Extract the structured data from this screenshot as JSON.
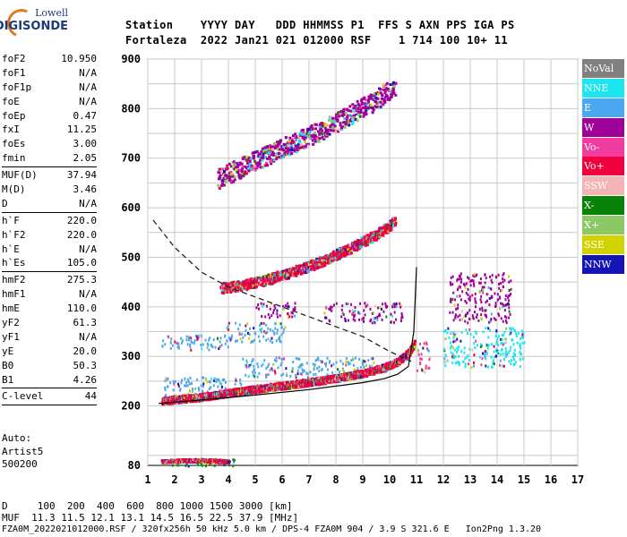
{
  "logo": {
    "line1": "Lowell",
    "line2": "DIGISONDE"
  },
  "header": {
    "line1": "Station    YYYY DAY   DDD HHMMSS P1  FFS S AXN PPS IGA PS",
    "line2": "Fortaleza  2022 Jan21 021 012000 RSF    1 714 100 10+ 11"
  },
  "params": {
    "group1": [
      {
        "label": "foF2",
        "value": "10.950"
      },
      {
        "label": "foF1",
        "value": "N/A"
      },
      {
        "label": "foF1p",
        "value": "N/A"
      },
      {
        "label": "foE",
        "value": "N/A"
      },
      {
        "label": "foEp",
        "value": "0.47"
      },
      {
        "label": "fxI",
        "value": "11.25"
      },
      {
        "label": "foEs",
        "value": "3.00"
      },
      {
        "label": "fmin",
        "value": "2.05"
      }
    ],
    "group2": [
      {
        "label": "MUF(D)",
        "value": "37.94"
      },
      {
        "label": "M(D)",
        "value": "3.46"
      },
      {
        "label": "D",
        "value": "N/A"
      }
    ],
    "group3": [
      {
        "label": "h`F",
        "value": "220.0"
      },
      {
        "label": "h`F2",
        "value": "220.0"
      },
      {
        "label": "h`E",
        "value": "N/A"
      },
      {
        "label": "h`Es",
        "value": "105.0"
      }
    ],
    "group4": [
      {
        "label": "hmF2",
        "value": "275.3"
      },
      {
        "label": "hmF1",
        "value": "N/A"
      },
      {
        "label": "hmE",
        "value": "110.0"
      },
      {
        "label": "yF2",
        "value": "61.3"
      },
      {
        "label": "yF1",
        "value": "N/A"
      },
      {
        "label": "yE",
        "value": "20.0"
      },
      {
        "label": "B0",
        "value": "50.3"
      },
      {
        "label": "B1",
        "value": "4.26"
      }
    ],
    "group5": [
      {
        "label": "C-level",
        "value": "44"
      }
    ]
  },
  "auto": {
    "line1": "Auto:",
    "line2": "Artist5",
    "line3": "500200"
  },
  "legend": [
    {
      "label": "NoVal",
      "color": "#808080"
    },
    {
      "label": "NNE",
      "color": "#1ee6f0"
    },
    {
      "label": "E",
      "color": "#4aa8f0"
    },
    {
      "label": "W",
      "color": "#a0009a"
    },
    {
      "label": "Vo-",
      "color": "#f03ca0"
    },
    {
      "label": "Vo+",
      "color": "#f0003c"
    },
    {
      "label": "SSW",
      "color": "#f5b4b4"
    },
    {
      "label": "X-",
      "color": "#0a820a"
    },
    {
      "label": "X+",
      "color": "#8cc864"
    },
    {
      "label": "SSE",
      "color": "#d2d200"
    },
    {
      "label": "NNW",
      "color": "#1414b4"
    }
  ],
  "footer": {
    "line1": "D     100  200  400  600  800 1000 1500 3000 [km]",
    "line2": "MUF  11.3 11.5 12.1 13.1 14.5 16.5 22.5 37.9 [MHz]",
    "line3": "FZA0M_2022021012000.RSF / 320fx256h 50 kHz 5.0 km / DPS-4 FZA0M 904 / 3.9 S 321.6 E   Ion2Png 1.3.20"
  },
  "chart_data": {
    "type": "scatter",
    "title": "",
    "xlabel": "",
    "ylabel": "",
    "xlim": [
      1,
      17
    ],
    "ylim": [
      80,
      900
    ],
    "x_ticks": [
      "1",
      "2",
      "3",
      "4",
      "5",
      "6",
      "7",
      "8",
      "9",
      "10",
      "11",
      "12",
      "13",
      "14",
      "15",
      "16",
      "17"
    ],
    "y_ticks": [
      "80",
      "200",
      "300",
      "400",
      "500",
      "600",
      "700",
      "800",
      "900"
    ],
    "grid": true,
    "legend_placement": "right",
    "dashed_curve": [
      [
        1.2,
        575
      ],
      [
        2,
        520
      ],
      [
        3,
        470
      ],
      [
        4,
        440
      ],
      [
        5,
        420
      ],
      [
        6,
        400
      ],
      [
        7,
        380
      ],
      [
        8,
        360
      ],
      [
        9,
        340
      ],
      [
        10,
        310
      ],
      [
        10.8,
        290
      ]
    ],
    "profile_curve": [
      [
        1.4,
        205
      ],
      [
        3,
        212
      ],
      [
        5,
        222
      ],
      [
        7,
        233
      ],
      [
        8,
        240
      ],
      [
        9,
        247
      ],
      [
        9.8,
        255
      ],
      [
        10.3,
        264
      ],
      [
        10.7,
        280
      ],
      [
        10.9,
        350
      ],
      [
        11.0,
        480
      ]
    ],
    "red_trace": [
      [
        1.5,
        212
      ],
      [
        2,
        215
      ],
      [
        3,
        220
      ],
      [
        4,
        228
      ],
      [
        5,
        236
      ],
      [
        6,
        243
      ],
      [
        7,
        250
      ],
      [
        8,
        258
      ],
      [
        9,
        268
      ],
      [
        9.8,
        280
      ],
      [
        10.3,
        292
      ],
      [
        10.7,
        310
      ],
      [
        10.9,
        330
      ]
    ],
    "second_hop": [
      [
        3.7,
        440
      ],
      [
        4.5,
        445
      ],
      [
        5.5,
        458
      ],
      [
        6.5,
        475
      ],
      [
        7.5,
        495
      ],
      [
        8.5,
        520
      ],
      [
        9.5,
        548
      ],
      [
        10.2,
        575
      ]
    ],
    "third_hop": [
      [
        3.6,
        660
      ],
      [
        4.5,
        685
      ],
      [
        5.5,
        710
      ],
      [
        6.5,
        735
      ],
      [
        7.5,
        760
      ],
      [
        8.5,
        790
      ],
      [
        9.5,
        820
      ],
      [
        10.2,
        850
      ]
    ],
    "es_trace": [
      [
        1.5,
        90
      ],
      [
        2,
        91
      ],
      [
        2.5,
        92
      ],
      [
        3,
        92
      ],
      [
        3.5,
        91
      ],
      [
        4,
        90
      ]
    ],
    "clusters": [
      {
        "x": [
          1.5,
          4.0
        ],
        "y": [
          315,
          345
        ],
        "series": "E"
      },
      {
        "x": [
          3.9,
          6.1
        ],
        "y": [
          330,
          370
        ],
        "series": "E"
      },
      {
        "x": [
          1.6,
          4.5
        ],
        "y": [
          220,
          260
        ],
        "series": "E"
      },
      {
        "x": [
          4.5,
          9.5
        ],
        "y": [
          260,
          300
        ],
        "series": "E"
      },
      {
        "x": [
          12.0,
          15.0
        ],
        "y": [
          280,
          360
        ],
        "series": "NNE"
      },
      {
        "x": [
          11.0,
          11.5
        ],
        "y": [
          270,
          330
        ],
        "series": "Vo-"
      },
      {
        "x": [
          5.0,
          6.5
        ],
        "y": [
          380,
          410
        ],
        "series": "W"
      },
      {
        "x": [
          7.5,
          10.5
        ],
        "y": [
          370,
          410
        ],
        "series": "W"
      },
      {
        "x": [
          12.2,
          14.5
        ],
        "y": [
          370,
          470
        ],
        "series": "W"
      },
      {
        "x": [
          1.7,
          4.2
        ],
        "y": [
          80,
          95
        ],
        "series": "X-"
      }
    ]
  }
}
